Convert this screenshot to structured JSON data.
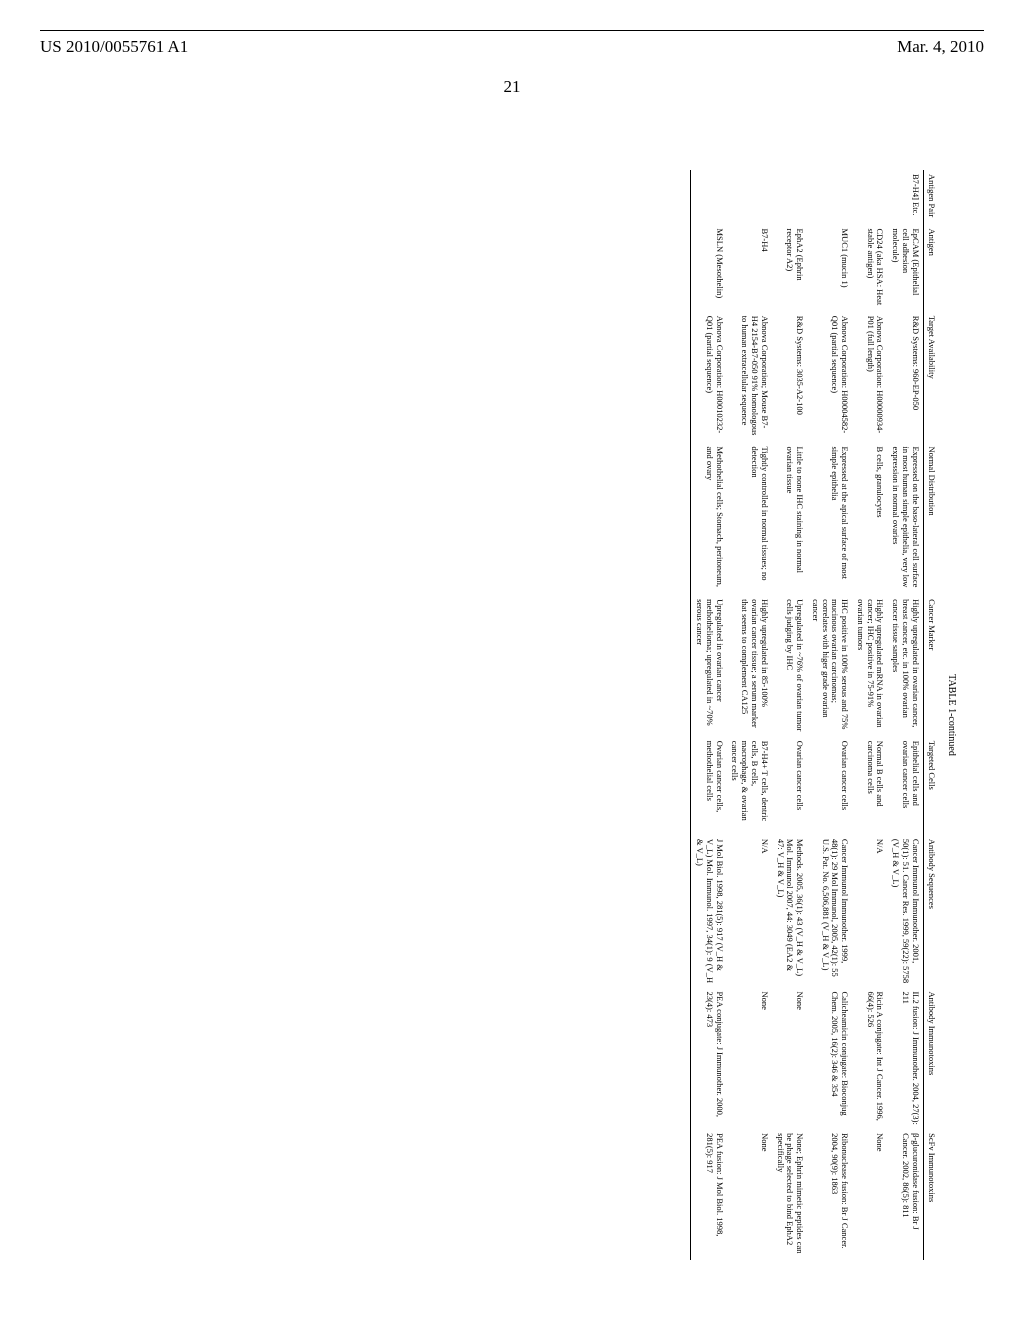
{
  "page": {
    "pub_number": "US 2010/0055761 A1",
    "pub_date": "Mar. 4, 2010",
    "page_number": "21",
    "table_caption": "TABLE 1-continued"
  },
  "table": {
    "columns": [
      "Antigen Pair",
      "Antigen",
      "Target Availability",
      "Normal Distribution",
      "Cancer Marker",
      "Targeted Cells",
      "Antibody Sequences",
      "Antibody Immunotoxins",
      "ScFv Immunotoxins"
    ],
    "rows": [
      {
        "pair": "B7-H4] Etc.",
        "antigen": "EpCAM (Epithelial cell adhesion molecule)",
        "target": "R&D Systems: 960-EP-050",
        "normal": "Expressed on the baso-lateral cell surface in most human simple epithelia, very low expression in normal ovaries",
        "marker": "Highly upregulated in ovarian cancer, breast cancer, etc. in 100% ovarian cancer tissue samples",
        "cells": "Epithelial cells and ovarian cancer cells",
        "abseq": "Cancer Immunol Immunother. 2001, 50(1): 51. Cancer Res. 1999, 59(22): 5758 (V_H & V_L)",
        "abitox": "IL2 fusion: J Immunother. 2004, 27(3): 211",
        "scfv": "β-glucuronidase fusion: Br J Cancer. 2002, 86(5): 811"
      },
      {
        "pair": "",
        "antigen": "CD24 (aka HSA: Heat stable antigen)",
        "target": "Abnova Corporation: H00000934-P01 (full length)",
        "normal": "B cells, granulocytes",
        "marker": "Highly upregulated mRNA in ovarian cancer; IHC positive in 75-91% ovarian tumors",
        "cells": "Normal B cells and carcinoma cells",
        "abseq": "N/A",
        "abitox": "Ricin A conjugate: Int J Cancer. 1996, 66(4): 526",
        "scfv": "None"
      },
      {
        "pair": "",
        "antigen": "MUC1 (mucin 1)",
        "target": "Abnova Corporation: H00004582-Q01 (partial sequence)",
        "normal": "Expressed at the apical surface of most simple epithelia",
        "marker": "IHC positive in 100% serous and 75% mucinous ovarian carcinomas; correlates with higer grade ovarian cancer",
        "cells": "Ovarian cancer cells",
        "abseq": "Cancer Immunol Immunother. 1999, 48(1): 29 Mol Immunol, 2005, 42(1): 55 U.S. Pat. No. 6,506,881 (V_H & V_L)",
        "abitox": "Calicheamicin conjugate: Bioconjug Chem. 2005, 16(2): 346 & 354",
        "scfv": "Ribonuclease fusion: Br J Cancer. 2004, 90(9): 1863"
      },
      {
        "pair": "",
        "antigen": "EphA2 (Ephrin receptor A2)",
        "target": "R&D Systems: 3035-A2-100",
        "normal": "Little to none IHC staining in normal ovarian tissue",
        "marker": "Upregulated in ~76% of ovarian tumor cells judging by IHC",
        "cells": "Ovarian cancer cells",
        "abseq": "Methods. 2005, 36(1): 43 (V_H & V_L) Mol. Immunol 2007, 44: 3049 (EA2 & 47: V_H & V_L)",
        "abitox": "None",
        "scfv": "None; Ephrin mimetic peptides can be phage selected to bind EphA2 specifically"
      },
      {
        "pair": "",
        "antigen": "B7-H4",
        "target": "Abnova Corporation; Mouse B7-H4 2154-B7-050 91% homologous to human extracellular sequence",
        "normal": "Tightly controlled in normal tissues; no detection",
        "marker": "Highly upregulated in 85-100% ovarian cancer tissue; a serum marker that seems to complement CA125",
        "cells": "B7-H4+ T cells, dentric cells, B cells, macrophage, & ovarian cancer cells",
        "abseq": "N/A",
        "abitox": "None",
        "scfv": "None"
      },
      {
        "pair": "",
        "antigen": "MSLN (Mesothelin)",
        "target": "Abnova Corporation: H00010232-Q01 (partial sequence)",
        "normal": "Methothelial cells; Stomach, peritoneum, and ovary",
        "marker": "Upregulated in ovarian cancer methothelioma; upregulated in ~70% serous cancer",
        "cells": "Ovarian cancer cells, methothelial cells",
        "abseq": "J Mol Biol. 1998, 281(5): 917 (V_H & V_L) Mol. Immunol. 1997, 34(1): 9 (V_H & V_L)",
        "abitox": "PEA conjugate: J Immunother. 2000, 23(4): 473",
        "scfv": "PEA fusion: J Mol Biol. 1998, 281(5): 917"
      }
    ]
  }
}
